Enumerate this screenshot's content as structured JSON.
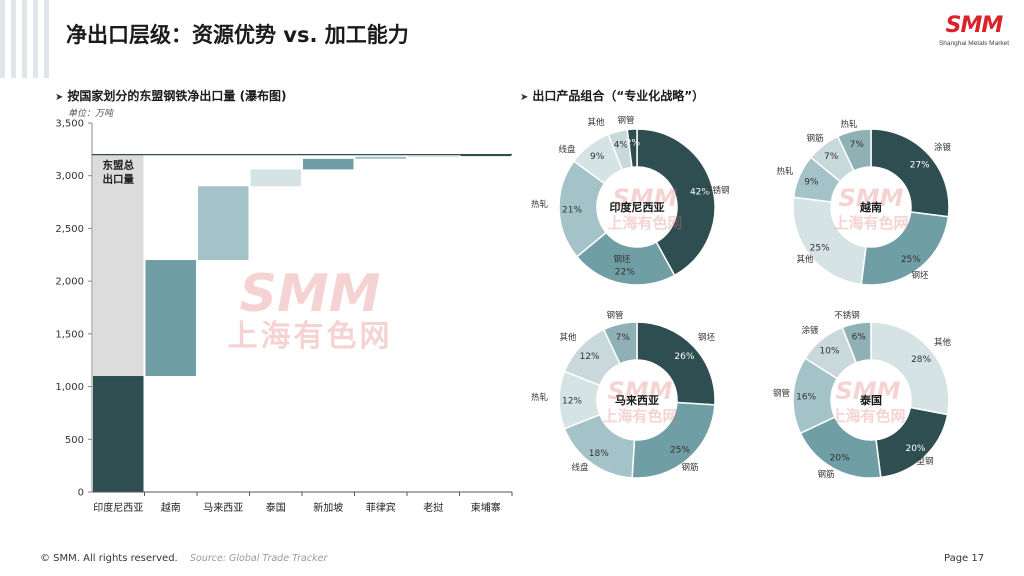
{
  "header": {
    "title": "净出口层级：资源优势 vs. 加工能力",
    "logo_text": "SMM",
    "logo_subtitle": "Shanghai Metals Market"
  },
  "waterfall": {
    "section_title": "按国家划分的东盟钢铁净出口量 (瀑布图)",
    "unit_label": "单位：万吨",
    "total_label": "东盟总出口量",
    "watermark_en": "SMM",
    "watermark_cn": "上海有色网"
  },
  "pies": {
    "section_title": "出口产品组合（“专业化战略”）",
    "watermark_en": "SMM",
    "watermark_cn": "上海有色网"
  },
  "chart_data": [
    {
      "type": "bar",
      "subtype": "waterfall",
      "title": "按国家划分的东盟钢铁净出口量 (瀑布图)",
      "ylabel": "单位：万吨",
      "ylim": [
        0,
        3500
      ],
      "yticks": [
        0,
        500,
        1000,
        1500,
        2000,
        2500,
        3000,
        3500
      ],
      "ytick_labels": [
        "0",
        "500",
        "1,000",
        "1,500",
        "2,000",
        "2,500",
        "3,000",
        "3,500"
      ],
      "categories": [
        "印度尼西亚",
        "越南",
        "马来西亚",
        "泰国",
        "新加坡",
        "菲律宾",
        "老挝",
        "柬埔寨"
      ],
      "values": [
        1100,
        1100,
        700,
        160,
        100,
        20,
        10,
        10
      ],
      "total": 3200,
      "total_label": "东盟总出口量",
      "colors": [
        "#2f4e52",
        "#6f9ea4",
        "#a4c3c8",
        "#d6e3e5",
        "#6f9ea4",
        "#a4c3c8",
        "#d6e3e5",
        "#2f4e52"
      ],
      "total_color": "#dcdcdc"
    },
    {
      "type": "pie",
      "subtype": "donut",
      "title": "印度尼西亚",
      "categories": [
        "不锈钢",
        "钢坯",
        "热轧",
        "线盘",
        "其他",
        "钢管"
      ],
      "values": [
        42,
        22,
        21,
        9,
        4,
        2
      ],
      "labels": [
        "42%",
        "22%",
        "21%",
        "9%",
        "4%",
        "2%"
      ],
      "colors": [
        "#2f4e52",
        "#6f9ea4",
        "#a4c3c8",
        "#d6e3e5",
        "#c9d9db",
        "#2f4e52"
      ]
    },
    {
      "type": "pie",
      "subtype": "donut",
      "title": "越南",
      "categories": [
        "涂镀",
        "钢坯",
        "其他",
        "热轧",
        "钢筋",
        "热轧"
      ],
      "values": [
        27,
        25,
        25,
        9,
        7,
        7
      ],
      "labels": [
        "27%",
        "25%",
        "25%",
        "9%",
        "7%",
        "7%"
      ],
      "colors": [
        "#2f4e52",
        "#6f9ea4",
        "#d6e3e5",
        "#a4c3c8",
        "#c9d9db",
        "#8fb1b6"
      ]
    },
    {
      "type": "pie",
      "subtype": "donut",
      "title": "马来西亚",
      "categories": [
        "钢坯",
        "钢筋",
        "线盘",
        "热轧",
        "其他",
        "钢管"
      ],
      "values": [
        26,
        25,
        18,
        12,
        12,
        7
      ],
      "labels": [
        "26%",
        "25%",
        "18%",
        "12%",
        "12%",
        "7%"
      ],
      "colors": [
        "#2f4e52",
        "#6f9ea4",
        "#a4c3c8",
        "#d6e3e5",
        "#c9d9db",
        "#8fb1b6"
      ]
    },
    {
      "type": "pie",
      "subtype": "donut",
      "title": "泰国",
      "categories": [
        "其他",
        "型钢",
        "钢筋",
        "钢管",
        "涂镀",
        "不锈钢"
      ],
      "values": [
        28,
        20,
        20,
        16,
        10,
        6
      ],
      "labels": [
        "28%",
        "20%",
        "20%",
        "16%",
        "10%",
        "6%"
      ],
      "colors": [
        "#d6e3e5",
        "#2f4e52",
        "#6f9ea4",
        "#a4c3c8",
        "#c9d9db",
        "#8fb1b6"
      ]
    }
  ],
  "footer": {
    "copyright": "© SMM. All rights reserved.",
    "source": "Source: Global Trade Tracker",
    "page": "Page 17"
  }
}
